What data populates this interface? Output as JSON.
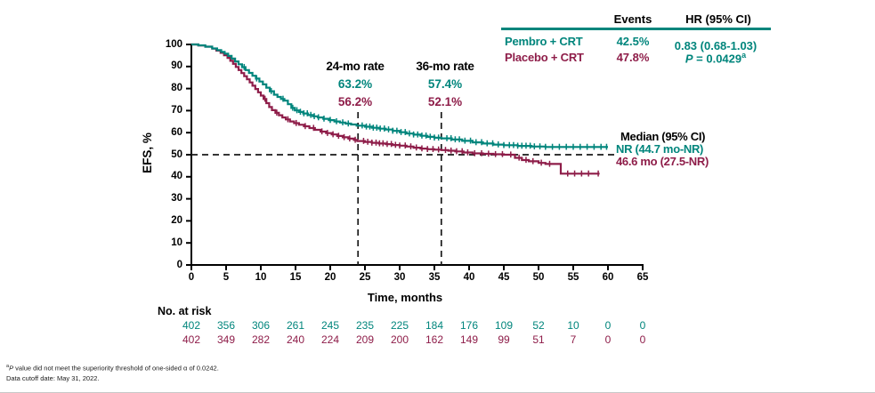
{
  "colors": {
    "pembro": "#00857C",
    "placebo": "#8E1D49",
    "axis": "#000000",
    "dashed": "#1a1a1a"
  },
  "stats_table": {
    "headers": {
      "events": "Events",
      "hr": "HR (95% CI)"
    },
    "rows": [
      {
        "arm": "Pembro + CRT",
        "events": "42.5%"
      },
      {
        "arm": "Placebo + CRT",
        "events": "47.8%"
      }
    ],
    "hr_value": "0.83 (0.68-1.03)",
    "p_italic": "P",
    "p_text": " = 0.0429",
    "p_sup": "a"
  },
  "annotations": {
    "rate24": {
      "title": "24-mo rate",
      "pembro": "63.2%",
      "placebo": "56.2%"
    },
    "rate36": {
      "title": "36-mo rate",
      "pembro": "57.4%",
      "placebo": "52.1%"
    },
    "median": {
      "title": "Median (95% CI)",
      "pembro": "NR (44.7 mo-NR)",
      "placebo": "46.6 mo (27.5-NR)"
    }
  },
  "axes": {
    "y_label": "EFS, %",
    "x_label": "Time, months"
  },
  "risk_table": {
    "title": "No. at risk",
    "pembro": [
      402,
      356,
      306,
      261,
      245,
      235,
      225,
      184,
      176,
      109,
      52,
      10,
      0,
      0
    ],
    "placebo": [
      402,
      349,
      282,
      240,
      224,
      209,
      200,
      162,
      149,
      99,
      51,
      7,
      0,
      0
    ]
  },
  "footnotes": {
    "fn1_sup": "a",
    "fn1_italic": "P",
    "fn1_text": " value did not meet the superiority threshold of one-sided α of 0.0242.",
    "fn2": "Data cutoff date: May 31, 2022."
  },
  "chart_data": {
    "type": "line",
    "subtype": "kaplan-meier",
    "xlabel": "Time, months",
    "ylabel": "EFS, %",
    "xlim": [
      0,
      65
    ],
    "ylim": [
      0,
      100
    ],
    "xticks": [
      0,
      5,
      10,
      15,
      20,
      25,
      30,
      35,
      40,
      45,
      50,
      55,
      60,
      65
    ],
    "yticks": [
      0,
      10,
      20,
      30,
      40,
      50,
      60,
      70,
      80,
      90,
      100
    ],
    "grid": false,
    "reference_lines": {
      "horizontal_pct": 50,
      "vertical_months": [
        24,
        36
      ]
    },
    "series": [
      {
        "name": "Pembro + CRT",
        "color": "#00857C",
        "rate_24mo": 63.2,
        "rate_36mo": 57.4,
        "median": "NR (44.7 mo-NR)",
        "events_pct": 42.5,
        "steps": [
          [
            0,
            100
          ],
          [
            1,
            99.6
          ],
          [
            2,
            99
          ],
          [
            3,
            98.2
          ],
          [
            3.7,
            97.4
          ],
          [
            4.3,
            96.6
          ],
          [
            4.8,
            95.8
          ],
          [
            5.3,
            94.8
          ],
          [
            5.8,
            93.6
          ],
          [
            6.3,
            92.3
          ],
          [
            6.8,
            91
          ],
          [
            7.3,
            89.7
          ],
          [
            7.8,
            88.4
          ],
          [
            8.3,
            87.1
          ],
          [
            8.8,
            85.8
          ],
          [
            9.3,
            84.5
          ],
          [
            9.8,
            83.2
          ],
          [
            10.3,
            81.9
          ],
          [
            10.8,
            80.4
          ],
          [
            11.3,
            78.8
          ],
          [
            11.9,
            77.2
          ],
          [
            12.4,
            76.2
          ],
          [
            12.9,
            75.3
          ],
          [
            13.4,
            74.5
          ],
          [
            13.9,
            72.9
          ],
          [
            14.4,
            71.2
          ],
          [
            14.9,
            70.1
          ],
          [
            15.5,
            69.4
          ],
          [
            16.1,
            68.7
          ],
          [
            16.8,
            68
          ],
          [
            17.5,
            67.4
          ],
          [
            18.2,
            66.9
          ],
          [
            19,
            66.3
          ],
          [
            19.8,
            65.7
          ],
          [
            20.6,
            65.1
          ],
          [
            21.4,
            64.6
          ],
          [
            22.2,
            64.1
          ],
          [
            23,
            63.7
          ],
          [
            23.8,
            63.2
          ],
          [
            25,
            62.7
          ],
          [
            26,
            62.2
          ],
          [
            27,
            61.8
          ],
          [
            28,
            61.4
          ],
          [
            29,
            60.8
          ],
          [
            30,
            60.2
          ],
          [
            31,
            59.6
          ],
          [
            32,
            59.1
          ],
          [
            33,
            58.6
          ],
          [
            34,
            58.1
          ],
          [
            35,
            57.7
          ],
          [
            36,
            57.4
          ],
          [
            37.5,
            56.9
          ],
          [
            39,
            56.3
          ],
          [
            40.5,
            55.6
          ],
          [
            42,
            55.1
          ],
          [
            43.5,
            54.6
          ],
          [
            45,
            54.3
          ],
          [
            47,
            54
          ],
          [
            49,
            53.7
          ],
          [
            51,
            53.5
          ],
          [
            60,
            53.5
          ]
        ],
        "censor_marks": [
          7.6,
          9.4,
          11.5,
          13.2,
          14.6,
          15.2,
          15.7,
          16.2,
          16.7,
          17.2,
          17.7,
          18.3,
          19.1,
          20,
          20.9,
          21.8,
          22.6,
          24.6,
          25.2,
          25.7,
          26.2,
          26.7,
          27.2,
          27.8,
          28.4,
          29,
          29.6,
          30.2,
          30.8,
          31.4,
          32,
          32.6,
          33.2,
          33.8,
          34.4,
          35,
          35.6,
          36.8,
          37.4,
          38,
          38.6,
          39.4,
          40.2,
          41,
          41.8,
          42.6,
          43.4,
          44.2,
          45,
          45.8,
          46.4,
          47,
          47.6,
          48.2,
          48.8,
          49.4,
          50.2,
          51,
          52,
          53,
          54,
          55,
          56,
          57,
          58,
          59,
          59.8
        ]
      },
      {
        "name": "Placebo + CRT",
        "color": "#8E1D49",
        "rate_24mo": 56.2,
        "rate_36mo": 52.1,
        "median": "46.6 mo (27.5-NR)",
        "events_pct": 47.8,
        "steps": [
          [
            0,
            100
          ],
          [
            1,
            99.5
          ],
          [
            2,
            99
          ],
          [
            3,
            98.1
          ],
          [
            3.6,
            97.2
          ],
          [
            4.2,
            96.2
          ],
          [
            4.7,
            95.1
          ],
          [
            5.2,
            93.9
          ],
          [
            5.6,
            92.6
          ],
          [
            6,
            91.2
          ],
          [
            6.4,
            89.8
          ],
          [
            6.8,
            88.4
          ],
          [
            7.2,
            87
          ],
          [
            7.6,
            85.6
          ],
          [
            8,
            84.2
          ],
          [
            8.4,
            82.8
          ],
          [
            8.8,
            81.3
          ],
          [
            9.2,
            79.8
          ],
          [
            9.6,
            78.3
          ],
          [
            10,
            76.8
          ],
          [
            10.4,
            75.3
          ],
          [
            10.8,
            73.4
          ],
          [
            11.2,
            71.6
          ],
          [
            11.6,
            70.2
          ],
          [
            12.1,
            69
          ],
          [
            12.6,
            67.9
          ],
          [
            13.1,
            66.9
          ],
          [
            13.6,
            66
          ],
          [
            14.2,
            65.1
          ],
          [
            14.8,
            64.3
          ],
          [
            15.5,
            63.6
          ],
          [
            16.2,
            62.9
          ],
          [
            17,
            62.1
          ],
          [
            17.8,
            61.3
          ],
          [
            18.6,
            60.5
          ],
          [
            19.4,
            59.8
          ],
          [
            20.2,
            59.2
          ],
          [
            21,
            58.5
          ],
          [
            21.8,
            57.9
          ],
          [
            22.6,
            57.3
          ],
          [
            23.4,
            56.7
          ],
          [
            23.9,
            56.2
          ],
          [
            25,
            55.8
          ],
          [
            26,
            55.4
          ],
          [
            27,
            55.1
          ],
          [
            28,
            54.8
          ],
          [
            29,
            54.4
          ],
          [
            30,
            54.1
          ],
          [
            31,
            53.7
          ],
          [
            32,
            53.2
          ],
          [
            33,
            52.8
          ],
          [
            34,
            52.5
          ],
          [
            35,
            52.3
          ],
          [
            36,
            52.1
          ],
          [
            37,
            51.8
          ],
          [
            38,
            51.5
          ],
          [
            39.2,
            51
          ],
          [
            40.5,
            50.6
          ],
          [
            42,
            50.4
          ],
          [
            43.5,
            50.2
          ],
          [
            45,
            50
          ],
          [
            46.6,
            48.6
          ],
          [
            47.6,
            47.6
          ],
          [
            48.6,
            47
          ],
          [
            50,
            46.3
          ],
          [
            51,
            45.8
          ],
          [
            53.2,
            41.4
          ],
          [
            58.8,
            41.4
          ]
        ],
        "censor_marks": [
          10.6,
          12.3,
          13.9,
          15.1,
          16.4,
          17.6,
          18.8,
          19.6,
          20.4,
          21.2,
          22,
          22.8,
          23.6,
          24.8,
          25.4,
          26,
          26.6,
          27.1,
          27.6,
          28.2,
          28.8,
          29.4,
          30,
          30.8,
          31.6,
          32.4,
          33.2,
          34,
          34.8,
          35.6,
          36.6,
          37.4,
          38.2,
          39,
          39.8,
          40.8,
          41.8,
          42.8,
          43.8,
          44.8,
          46,
          47.2,
          48.2,
          49.2,
          50.4,
          51.6,
          54.2,
          55.2,
          56.2,
          57.2,
          58.6
        ]
      }
    ],
    "risk_table_months": [
      0,
      5,
      10,
      15,
      20,
      25,
      30,
      35,
      40,
      45,
      50,
      55,
      60,
      65
    ]
  }
}
